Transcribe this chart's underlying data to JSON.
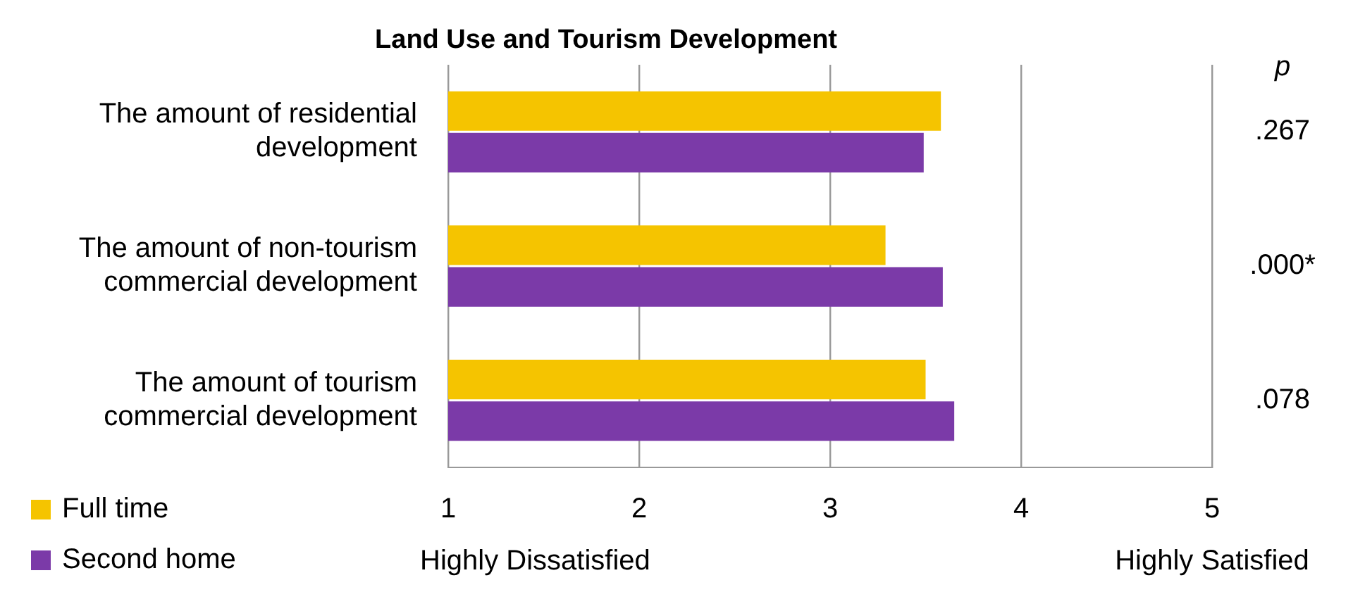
{
  "chart_data": {
    "type": "bar",
    "orientation": "horizontal",
    "title": "Land Use and Tourism Development",
    "categories": [
      "The amount of residential development",
      "The amount of non-tourism commercial development",
      "The amount of tourism commercial development"
    ],
    "series": [
      {
        "name": "Full time",
        "color": "#f5c400",
        "values": [
          3.58,
          3.29,
          3.5
        ]
      },
      {
        "name": "Second home",
        "color": "#7b3aa8",
        "values": [
          3.49,
          3.59,
          3.65
        ]
      }
    ],
    "xlim": [
      1,
      5
    ],
    "xticks": [
      1,
      2,
      3,
      4,
      5
    ],
    "grid": "x",
    "legend": "bottom left",
    "annotations": [
      "p",
      ".267",
      ".000*",
      ".078",
      "Highly Dissatisfied",
      "Highly Satisfied"
    ]
  }
}
